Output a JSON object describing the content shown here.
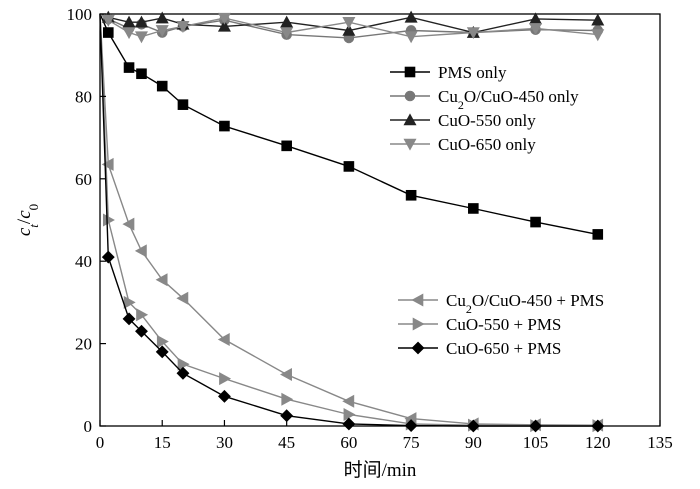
{
  "chart_data": {
    "type": "line",
    "xlabel": "时间/min",
    "ylabel": {
      "main1": "c",
      "sub1": "t",
      "sep": "/",
      "main2": "c",
      "sub2": "0"
    },
    "xlim": [
      0,
      135
    ],
    "ylim": [
      0,
      100
    ],
    "xticks": [
      "0",
      "15",
      "30",
      "45",
      "60",
      "75",
      "90",
      "105",
      "120",
      "135"
    ],
    "yticks": [
      "0",
      "20",
      "40",
      "60",
      "80",
      "100"
    ],
    "grid": false,
    "legend_groups": [
      {
        "position": "top-right",
        "items": [
          0,
          1,
          2,
          3
        ]
      },
      {
        "position": "lower-right",
        "items": [
          4,
          5,
          6
        ]
      }
    ],
    "series": [
      {
        "name": "PMS only",
        "legend": {
          "parts": [
            {
              "t": "PMS only"
            }
          ]
        },
        "color": "#000000",
        "marker": "square",
        "points": [
          [
            0,
            100
          ],
          [
            2,
            95.5
          ],
          [
            7,
            87
          ],
          [
            10,
            85.5
          ],
          [
            15,
            82.5
          ],
          [
            20,
            78
          ],
          [
            30,
            72.8
          ],
          [
            45,
            68
          ],
          [
            60,
            63
          ],
          [
            75,
            56
          ],
          [
            90,
            52.8
          ],
          [
            105,
            49.5
          ],
          [
            120,
            46.5
          ]
        ]
      },
      {
        "name": "Cu2O/CuO-450 only",
        "legend": {
          "parts": [
            {
              "t": "Cu"
            },
            {
              "t": "2",
              "sub": true
            },
            {
              "t": "O/CuO-450 only"
            }
          ]
        },
        "color": "#777777",
        "marker": "circle",
        "points": [
          [
            0,
            100
          ],
          [
            2,
            98.8
          ],
          [
            7,
            96.5
          ],
          [
            10,
            97.5
          ],
          [
            15,
            95.5
          ],
          [
            20,
            97
          ],
          [
            30,
            98.5
          ],
          [
            45,
            95
          ],
          [
            60,
            94.2
          ],
          [
            75,
            96
          ],
          [
            90,
            95.5
          ],
          [
            105,
            96.2
          ],
          [
            120,
            96
          ]
        ]
      },
      {
        "name": "CuO-550 only",
        "legend": {
          "parts": [
            {
              "t": "CuO-550 only"
            }
          ]
        },
        "color": "#222222",
        "marker": "triangle-up",
        "points": [
          [
            0,
            100
          ],
          [
            2,
            99.2
          ],
          [
            7,
            98
          ],
          [
            10,
            98
          ],
          [
            15,
            99
          ],
          [
            20,
            97.5
          ],
          [
            30,
            97
          ],
          [
            45,
            98
          ],
          [
            60,
            96
          ],
          [
            75,
            99.2
          ],
          [
            90,
            95.5
          ],
          [
            105,
            98.8
          ],
          [
            120,
            98.5
          ]
        ]
      },
      {
        "name": "CuO-650 only",
        "legend": {
          "parts": [
            {
              "t": "CuO-650 only"
            }
          ]
        },
        "color": "#888888",
        "marker": "triangle-down",
        "points": [
          [
            0,
            100
          ],
          [
            2,
            98.5
          ],
          [
            7,
            95.5
          ],
          [
            10,
            94.5
          ],
          [
            15,
            96
          ],
          [
            20,
            97
          ],
          [
            30,
            99
          ],
          [
            45,
            95.5
          ],
          [
            60,
            98
          ],
          [
            75,
            94.5
          ],
          [
            90,
            95.5
          ],
          [
            105,
            96.5
          ],
          [
            120,
            95
          ]
        ]
      },
      {
        "name": "Cu2O/CuO-450 + PMS",
        "legend": {
          "parts": [
            {
              "t": "Cu"
            },
            {
              "t": "2",
              "sub": true
            },
            {
              "t": "O/CuO-450 + PMS"
            }
          ]
        },
        "color": "#888888",
        "marker": "triangle-left",
        "points": [
          [
            0,
            100
          ],
          [
            2,
            63.5
          ],
          [
            7,
            49
          ],
          [
            10,
            42.5
          ],
          [
            15,
            35.5
          ],
          [
            20,
            31
          ],
          [
            30,
            21
          ],
          [
            45,
            12.5
          ],
          [
            60,
            6
          ],
          [
            75,
            1.8
          ],
          [
            90,
            0.5
          ],
          [
            105,
            0.3
          ],
          [
            120,
            0.2
          ]
        ]
      },
      {
        "name": "CuO-550 + PMS",
        "legend": {
          "parts": [
            {
              "t": "CuO-550 + PMS"
            }
          ]
        },
        "color": "#888888",
        "marker": "triangle-right",
        "points": [
          [
            0,
            100
          ],
          [
            2,
            50
          ],
          [
            7,
            30
          ],
          [
            10,
            27
          ],
          [
            15,
            20.5
          ],
          [
            20,
            15
          ],
          [
            30,
            11.5
          ],
          [
            45,
            6.5
          ],
          [
            60,
            2.8
          ],
          [
            75,
            0.5
          ],
          [
            90,
            0.2
          ],
          [
            105,
            0.1
          ],
          [
            120,
            0.1
          ]
        ]
      },
      {
        "name": "CuO-650 + PMS",
        "legend": {
          "parts": [
            {
              "t": "CuO-650 + PMS"
            }
          ]
        },
        "color": "#000000",
        "marker": "diamond",
        "points": [
          [
            0,
            100
          ],
          [
            2,
            41
          ],
          [
            7,
            26
          ],
          [
            10,
            23
          ],
          [
            15,
            18
          ],
          [
            20,
            12.8
          ],
          [
            30,
            7.2
          ],
          [
            45,
            2.5
          ],
          [
            60,
            0.5
          ],
          [
            75,
            0.1
          ],
          [
            90,
            0
          ],
          [
            105,
            0
          ],
          [
            120,
            0
          ]
        ]
      }
    ]
  }
}
